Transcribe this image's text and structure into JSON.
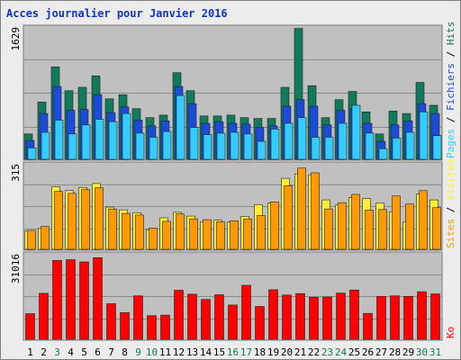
{
  "chart_data": {
    "type": "bar",
    "title": "Acces journalier pour Janvier 2016",
    "categories": [
      "1",
      "2",
      "3",
      "4",
      "5",
      "6",
      "7",
      "8",
      "9",
      "10",
      "11",
      "12",
      "13",
      "14",
      "15",
      "16",
      "17",
      "18",
      "19",
      "20",
      "21",
      "22",
      "23",
      "24",
      "25",
      "26",
      "27",
      "28",
      "29",
      "30",
      "31"
    ],
    "weekend_days": [
      "3",
      "9",
      "10",
      "16",
      "17",
      "23",
      "24",
      "30",
      "31"
    ],
    "panels": [
      {
        "id": "hits",
        "ymax_label": "1629",
        "ylim": [
          0,
          1629
        ],
        "legend": [
          {
            "label": "Pages",
            "color": "#33ccff"
          },
          {
            "label": "Fichiers",
            "color": "#1a4cd9"
          },
          {
            "label": "Hits",
            "color": "#117a5a"
          }
        ],
        "series": [
          {
            "name": "Hits",
            "color": "#117a5a",
            "values": [
              310,
              700,
              1130,
              840,
              880,
              1020,
              740,
              790,
              620,
              510,
              540,
              1060,
              840,
              530,
              530,
              540,
              510,
              500,
              500,
              880,
              1600,
              900,
              510,
              730,
              830,
              580,
              310,
              590,
              560,
              940,
              660
            ]
          },
          {
            "name": "Fichiers",
            "color": "#1a4cd9",
            "values": [
              230,
              560,
              890,
              600,
              610,
              790,
              570,
              640,
              480,
              410,
              470,
              890,
              680,
              440,
              460,
              440,
              430,
              390,
              410,
              650,
              730,
              650,
              420,
              600,
              620,
              440,
              220,
              420,
              470,
              680,
              560
            ]
          },
          {
            "name": "Pages",
            "color": "#33ccff",
            "values": [
              140,
              330,
              480,
              310,
              420,
              490,
              460,
              560,
              320,
              270,
              340,
              780,
              390,
              300,
              320,
              330,
              310,
              220,
              370,
              440,
              510,
              270,
              270,
              440,
              660,
              320,
              130,
              260,
              330,
              580,
              290
            ]
          }
        ]
      },
      {
        "id": "visits",
        "ymax_label": "315",
        "ylim": [
          0,
          315
        ],
        "legend": [
          {
            "label": "Sites",
            "color": "#ff9900"
          },
          {
            "label": "Visites",
            "color": "#ffee33"
          }
        ],
        "series": [
          {
            "name": "Visites",
            "color": "#ffee33",
            "values": [
              67,
              76,
              228,
              214,
              225,
              240,
              154,
              144,
              133,
              71,
              115,
              135,
              121,
              99,
              106,
              99,
              120,
              163,
              169,
              259,
              275,
              272,
              180,
              162,
              189,
              185,
              168,
              137,
              100,
              201,
              180
            ]
          },
          {
            "name": "Sites",
            "color": "#ff9900",
            "values": [
              69,
              83,
              211,
              204,
              218,
              224,
              147,
              131,
              125,
              77,
              102,
              129,
              111,
              108,
              100,
              104,
              111,
              123,
              173,
              232,
              296,
              279,
              147,
              170,
              200,
              143,
              145,
              195,
              165,
              214,
              152
            ]
          }
        ]
      },
      {
        "id": "ko",
        "ymax_label": "31016",
        "ylim": [
          0,
          31016
        ],
        "legend": [
          {
            "label": "Ko",
            "color": "#ff0000"
          }
        ],
        "series": [
          {
            "name": "Ko",
            "color": "#ff0000",
            "values": [
              9200,
              16500,
              28300,
              28600,
              27800,
              29300,
              12800,
              9600,
              15600,
              8500,
              8700,
              17600,
              16200,
              14300,
              16000,
              12300,
              19400,
              11800,
              17800,
              15900,
              16400,
              15100,
              15200,
              16600,
              17700,
              9300,
              15400,
              15600,
              15400,
              17100,
              16300
            ]
          }
        ]
      }
    ]
  }
}
